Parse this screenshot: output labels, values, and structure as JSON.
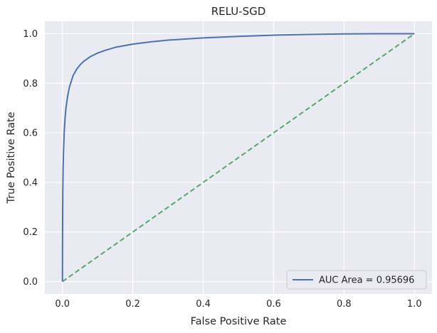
{
  "chart_data": {
    "type": "line",
    "title": "RELU-SGD",
    "xlabel": "False Positive Rate",
    "ylabel": "True Positive Rate",
    "xlim": [
      -0.05,
      1.05
    ],
    "ylim": [
      -0.05,
      1.05
    ],
    "xticks": [
      0.0,
      0.2,
      0.4,
      0.6,
      0.8,
      1.0
    ],
    "yticks": [
      0.0,
      0.2,
      0.4,
      0.6,
      0.8,
      1.0
    ],
    "xtick_labels": [
      "0.0",
      "0.2",
      "0.4",
      "0.6",
      "0.8",
      "1.0"
    ],
    "ytick_labels": [
      "0.0",
      "0.2",
      "0.4",
      "0.6",
      "0.8",
      "1.0"
    ],
    "grid": true,
    "legend_position": "bottom-right",
    "series": [
      {
        "name": "AUC Area = 0.95696",
        "color": "#4c72b0",
        "style": "solid",
        "x": [
          0,
          0.0005,
          0.001,
          0.002,
          0.003,
          0.005,
          0.0075,
          0.01,
          0.015,
          0.02,
          0.03,
          0.04,
          0.05,
          0.06,
          0.08,
          0.1,
          0.12,
          0.15,
          0.2,
          0.25,
          0.3,
          0.4,
          0.5,
          0.6,
          0.7,
          0.8,
          0.9,
          1.0
        ],
        "y": [
          0,
          0.25,
          0.36,
          0.46,
          0.52,
          0.6,
          0.66,
          0.7,
          0.75,
          0.785,
          0.83,
          0.856,
          0.874,
          0.888,
          0.908,
          0.922,
          0.932,
          0.945,
          0.958,
          0.967,
          0.974,
          0.983,
          0.989,
          0.994,
          0.997,
          0.999,
          1.0,
          1.0
        ]
      },
      {
        "name": "",
        "color": "#55a868",
        "style": "dashed",
        "x": [
          0,
          1
        ],
        "y": [
          0,
          1
        ]
      }
    ]
  }
}
